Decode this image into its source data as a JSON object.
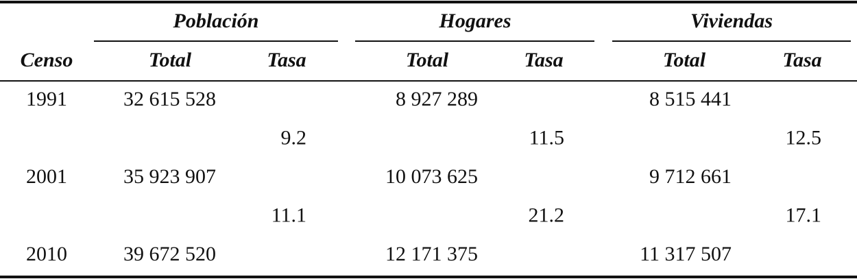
{
  "table": {
    "groups": [
      "Población",
      "Hogares",
      "Viviendas"
    ],
    "columns": [
      "Censo",
      "Total",
      "Tasa",
      "Total",
      "Tasa",
      "Total",
      "Tasa"
    ],
    "rows": [
      [
        1991,
        "32 615 528",
        null,
        "8 927 289",
        null,
        "8 515 441",
        null
      ],
      [
        null,
        null,
        9.2,
        null,
        11.5,
        null,
        12.5
      ],
      [
        2001,
        "35 923 907",
        null,
        "10 073 625",
        null,
        "9 712 661",
        null
      ],
      [
        null,
        null,
        11.1,
        null,
        21.2,
        null,
        17.1
      ],
      [
        2010,
        "39 672 520",
        null,
        "12 171 375",
        null,
        "11 317 507",
        null
      ]
    ]
  }
}
